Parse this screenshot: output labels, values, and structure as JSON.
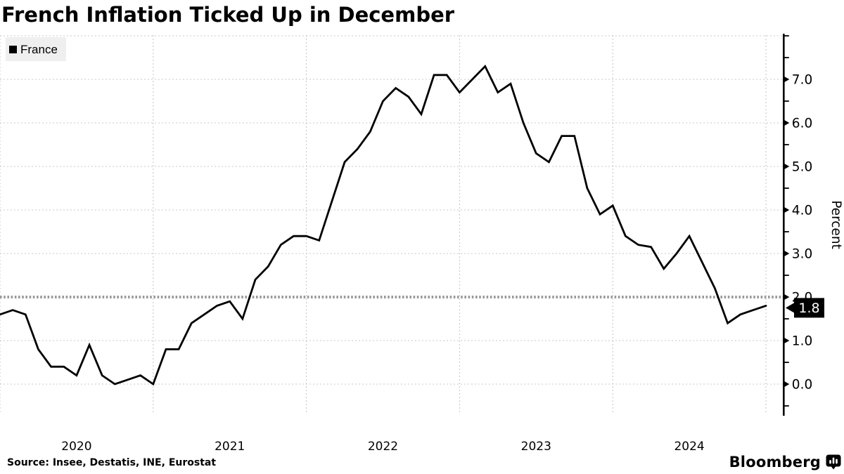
{
  "header": {
    "title": "French Inflation Ticked Up in December"
  },
  "legend": {
    "background": "#efefef",
    "items": [
      {
        "label": "France",
        "swatch_color": "#000000"
      }
    ]
  },
  "chart_data": {
    "type": "line",
    "title": "French Inflation Ticked Up in December",
    "frequency": "monthly",
    "x_start": "2019-12",
    "x_end": "2024-12",
    "x_tick_labels": [
      "2020",
      "2021",
      "2022",
      "2023",
      "2024"
    ],
    "y_axis": {
      "label": "Percent",
      "side": "right",
      "tick_labels": [
        "7.0",
        "6.0",
        "5.0",
        "4.0",
        "3.0",
        "2.0",
        "1.0",
        "0.0"
      ],
      "minor_tick_step": 0.5,
      "range_shown": [
        -0.7,
        8.0
      ]
    },
    "grid": true,
    "legend_position": "top-left",
    "reference_line": {
      "value": 2.0,
      "style": "thick-dotted",
      "color": "#9a9a9a"
    },
    "last_value_label": "1.8",
    "series": [
      {
        "name": "France",
        "color": "#000000",
        "values": [
          1.6,
          1.7,
          1.6,
          0.8,
          0.4,
          0.4,
          0.2,
          0.9,
          0.2,
          0.0,
          0.1,
          0.2,
          0.0,
          0.8,
          0.8,
          1.4,
          1.6,
          1.8,
          1.9,
          1.5,
          2.4,
          2.7,
          3.2,
          3.4,
          3.4,
          3.3,
          4.2,
          5.1,
          5.4,
          5.8,
          6.5,
          6.8,
          6.6,
          6.2,
          7.1,
          7.1,
          6.7,
          7.0,
          7.3,
          6.7,
          6.9,
          6.0,
          5.3,
          5.1,
          5.7,
          5.7,
          4.5,
          3.9,
          4.1,
          3.4,
          3.2,
          3.15,
          2.65,
          3.0,
          3.4,
          2.8,
          2.2,
          1.4,
          1.6,
          1.7,
          1.8
        ]
      }
    ]
  },
  "footer": {
    "source": "Source: Insee, Destatis, INE, Eurostat",
    "brand": "Bloomberg",
    "brand_icon": "bloomberg-bubble-chart-icon"
  }
}
